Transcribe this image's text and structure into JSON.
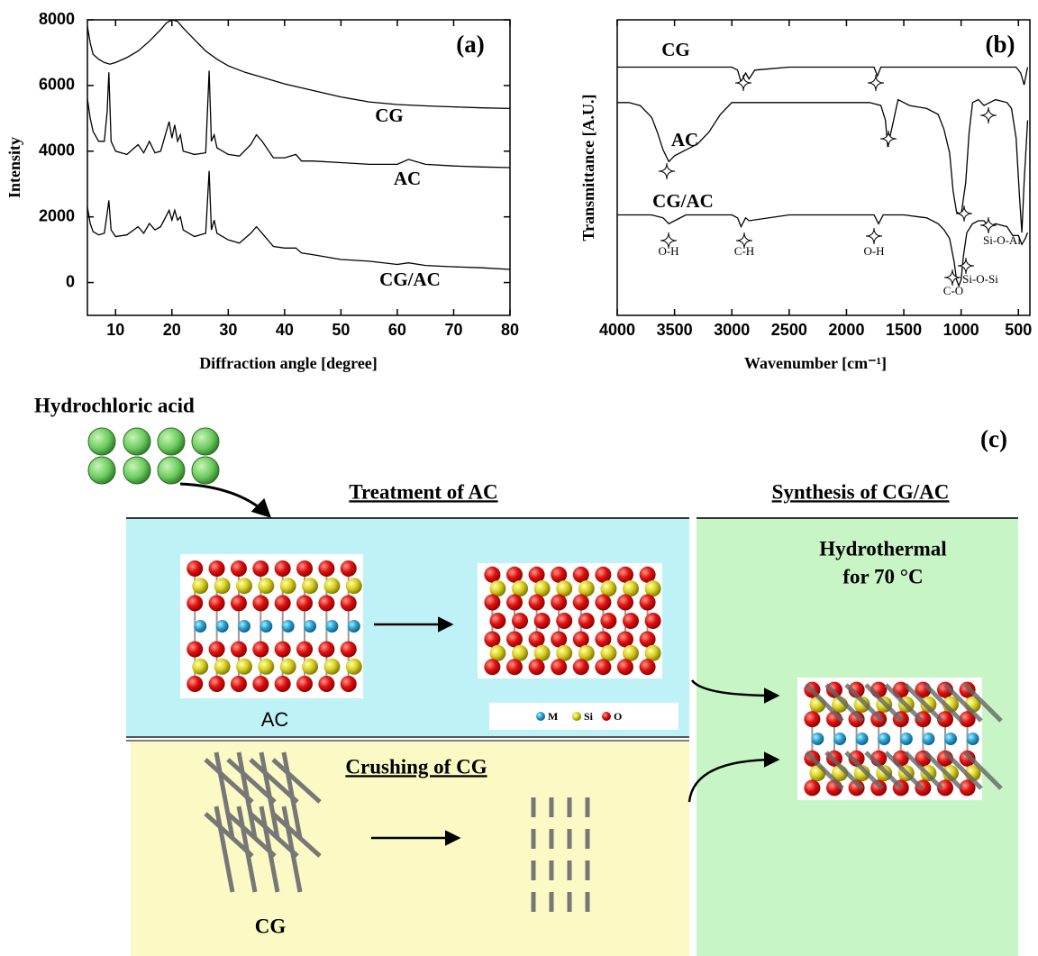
{
  "chart_data": [
    {
      "type": "line",
      "title": "(a)",
      "x_label": "Diffraction angle [degree]",
      "y_label": "Intensity",
      "xlim": [
        5,
        80
      ],
      "xticks": [
        10,
        20,
        30,
        40,
        50,
        60,
        70,
        80
      ],
      "ylim": [
        -1000,
        8000
      ],
      "yticks": [
        0,
        2000,
        4000,
        6000,
        8000
      ],
      "series": [
        {
          "name": "CG",
          "color": "#000000",
          "x": [
            5,
            5.5,
            6,
            7,
            8,
            9,
            10,
            12,
            14,
            16,
            18,
            19,
            20,
            21,
            22,
            24,
            26,
            28,
            30,
            33,
            36,
            40,
            45,
            50,
            55,
            60,
            65,
            70,
            75,
            80
          ],
          "values": [
            7800,
            7300,
            6950,
            6800,
            6700,
            6650,
            6700,
            6850,
            7050,
            7350,
            7700,
            7900,
            8000,
            7950,
            7750,
            7400,
            7050,
            6800,
            6600,
            6400,
            6250,
            6050,
            5850,
            5650,
            5500,
            5420,
            5380,
            5350,
            5320,
            5300
          ]
        },
        {
          "name": "AC",
          "color": "#000000",
          "x": [
            5,
            5.5,
            6,
            7,
            8,
            8.5,
            8.8,
            9.2,
            10,
            12,
            14,
            15,
            16,
            17,
            18,
            19.5,
            20,
            20.5,
            21,
            21.5,
            22,
            24,
            26,
            26.6,
            27,
            27.5,
            28,
            30,
            32,
            34,
            35,
            36,
            38,
            40,
            42,
            43,
            45,
            50,
            55,
            60,
            62,
            65,
            70,
            75,
            80
          ],
          "values": [
            5600,
            5000,
            4600,
            4300,
            4300,
            5200,
            6400,
            4300,
            4000,
            3900,
            4200,
            3950,
            4300,
            3950,
            4000,
            4900,
            4400,
            4800,
            4300,
            4500,
            4000,
            3900,
            3950,
            6450,
            4300,
            4500,
            4100,
            3900,
            3850,
            4200,
            4500,
            4300,
            3800,
            3800,
            3900,
            3700,
            3700,
            3650,
            3600,
            3600,
            3750,
            3600,
            3550,
            3520,
            3500
          ]
        },
        {
          "name": "CG/AC",
          "color": "#000000",
          "x": [
            5,
            5.5,
            6,
            7,
            8,
            8.5,
            8.8,
            9.2,
            10,
            12,
            14,
            15,
            16,
            17,
            18,
            19.5,
            20,
            20.5,
            21,
            21.5,
            22,
            24,
            26,
            26.6,
            27,
            27.5,
            28,
            30,
            32,
            34,
            35,
            36,
            38,
            40,
            42,
            43,
            45,
            50,
            55,
            60,
            62,
            65,
            70,
            75,
            80
          ],
          "values": [
            2300,
            1800,
            1550,
            1450,
            1500,
            2100,
            2500,
            1600,
            1400,
            1450,
            1700,
            1500,
            1800,
            1600,
            1700,
            2200,
            1900,
            2200,
            1900,
            2000,
            1600,
            1400,
            1500,
            3400,
            1600,
            1900,
            1500,
            1300,
            1200,
            1500,
            1700,
            1500,
            1100,
            1050,
            1050,
            900,
            850,
            700,
            650,
            550,
            600,
            520,
            480,
            450,
            400
          ]
        }
      ]
    },
    {
      "type": "line",
      "title": "(b)",
      "x_label": "Wavenumber [cm⁻¹]",
      "y_label": "Transmittance [A.U.]",
      "xlim": [
        4000,
        400
      ],
      "xticks": [
        4000,
        3500,
        3000,
        2500,
        2000,
        1500,
        1000,
        500
      ],
      "ylim": [
        0,
        100
      ],
      "annotations": [
        "O-H",
        "C-H",
        "O-H",
        "Si-O-Al",
        "Si-O-Si",
        "C-O"
      ],
      "series": [
        {
          "name": "CG",
          "color": "#000000",
          "x": [
            4000,
            3500,
            3000,
            2950,
            2920,
            2880,
            2850,
            2800,
            2500,
            2000,
            1760,
            1730,
            1700,
            1500,
            1000,
            700,
            520,
            480,
            450,
            420
          ],
          "values": [
            84,
            84,
            84,
            83,
            79,
            82,
            80,
            83,
            84,
            84,
            84,
            81,
            84,
            84,
            84,
            84,
            84,
            82,
            78,
            84
          ]
        },
        {
          "name": "AC",
          "color": "#000000",
          "x": [
            4000,
            3900,
            3800,
            3700,
            3650,
            3600,
            3550,
            3500,
            3400,
            3300,
            3200,
            3100,
            3000,
            2500,
            2000,
            1800,
            1700,
            1660,
            1640,
            1600,
            1550,
            1450,
            1300,
            1200,
            1150,
            1100,
            1070,
            1040,
            1000,
            960,
            930,
            900,
            850,
            800,
            700,
            600,
            560,
            520,
            490,
            470,
            450,
            420
          ],
          "values": [
            72,
            72,
            71,
            67,
            62,
            56,
            52,
            54,
            56,
            58,
            62,
            68,
            72,
            72,
            72,
            72,
            71,
            66,
            57,
            64,
            73,
            71,
            70,
            68,
            63,
            55,
            42,
            35,
            34,
            45,
            62,
            72,
            73,
            71,
            73,
            72,
            70,
            60,
            40,
            28,
            45,
            66
          ]
        },
        {
          "name": "CG/AC",
          "color": "#000000",
          "x": [
            4000,
            3700,
            3600,
            3550,
            3500,
            3400,
            3000,
            2950,
            2920,
            2880,
            2850,
            2500,
            2000,
            1760,
            1720,
            1680,
            1500,
            1300,
            1200,
            1150,
            1100,
            1060,
            1040,
            1020,
            1000,
            980,
            950,
            900,
            850,
            800,
            780,
            750,
            700,
            600,
            550,
            500,
            470,
            440,
            420
          ],
          "values": [
            34,
            34,
            33,
            31,
            32,
            34,
            34,
            33,
            30,
            33,
            32,
            34,
            34,
            34,
            31,
            34,
            34,
            33,
            31,
            29,
            26,
            18,
            12,
            10,
            12,
            20,
            28,
            31,
            32,
            32,
            31,
            30,
            31,
            30,
            27,
            27,
            24,
            26,
            28
          ]
        }
      ]
    }
  ],
  "diagram": {
    "reagent": "Hydrochloric acid",
    "panel_label": "(c)",
    "treatment_title": "Treatment of AC",
    "synthesis_title": "Synthesis of CG/AC",
    "condition": [
      "Hydrothermal",
      "for 70 °C"
    ],
    "ac_label": "AC",
    "atom_legend": [
      "M",
      "Si",
      "O"
    ],
    "crushing_title": "Crushing of CG",
    "cg_label": "CG"
  }
}
